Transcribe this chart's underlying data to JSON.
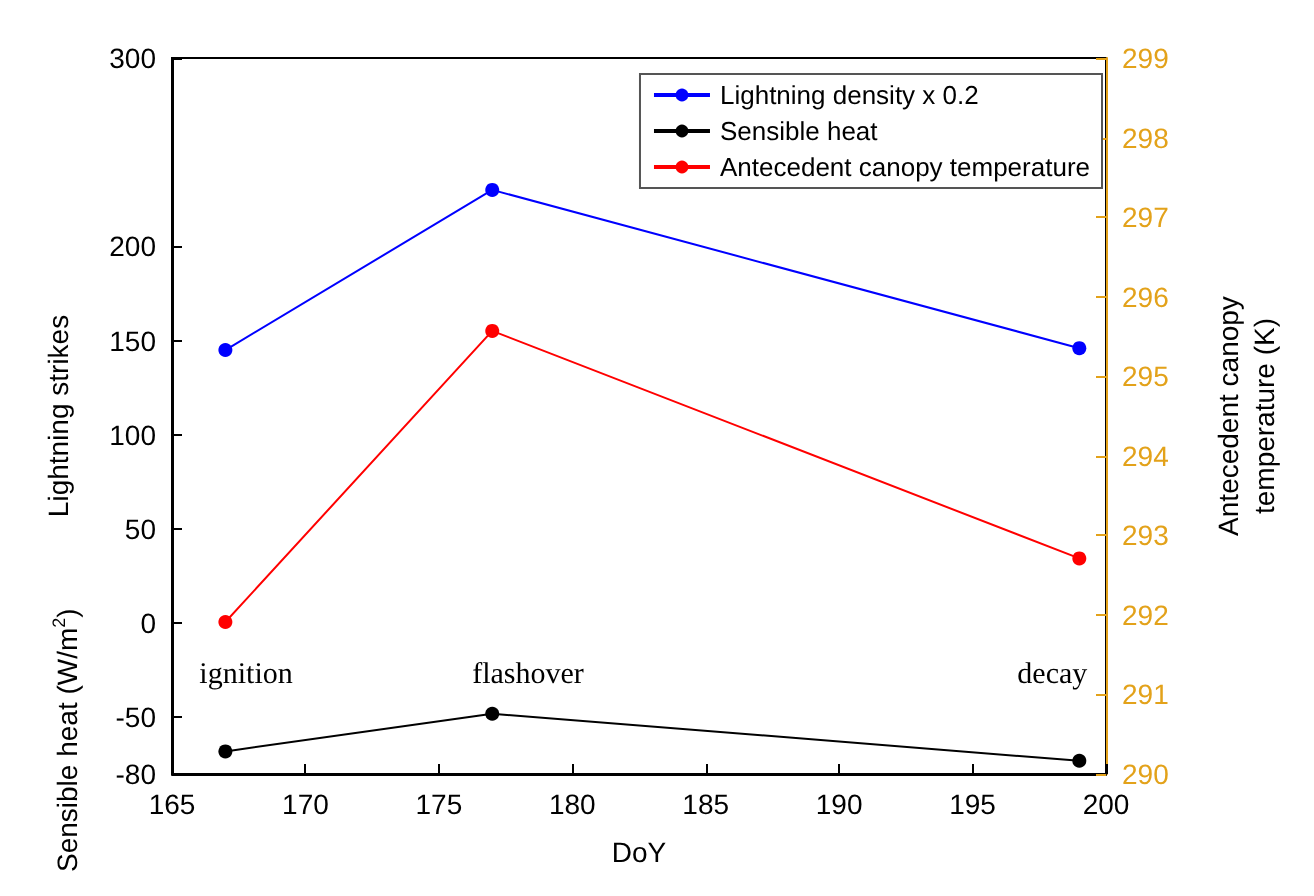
{
  "chart_data": {
    "type": "line",
    "xlabel": "DoY",
    "ylabel": "Lightning strikes",
    "y2label": "Antecedent canopy temperature (K)",
    "x": [
      167,
      177,
      199
    ],
    "xlim": [
      165,
      200
    ],
    "xticks": [
      165,
      170,
      175,
      180,
      185,
      190,
      195,
      200
    ],
    "ylim": [
      -80,
      300
    ],
    "yticks": [
      -80,
      -50,
      0,
      50,
      100,
      150,
      200,
      300
    ],
    "y2lim": [
      290,
      299
    ],
    "y2ticks": [
      290,
      291,
      292,
      293,
      294,
      295,
      296,
      297,
      298,
      299
    ],
    "series": [
      {
        "name": "Lightning density x 0.2",
        "color": "#0000ff",
        "values": [
          145,
          230,
          146
        ]
      },
      {
        "name": "Sensible heat",
        "color": "#000000",
        "values": [
          -68,
          -48,
          -73
        ]
      },
      {
        "name": "Antecedent canopy temperature",
        "color": "#ff0000",
        "values": [
          291.91,
          295.57,
          292.71
        ],
        "axis": "y2"
      }
    ],
    "annotations": [
      "Sensible heat (W/m$^{2}$)",
      "ignition",
      "flashover",
      "decay"
    ],
    "legend": "top right",
    "marker": "circle",
    "line_style": "solid",
    "grid": false
  }
}
